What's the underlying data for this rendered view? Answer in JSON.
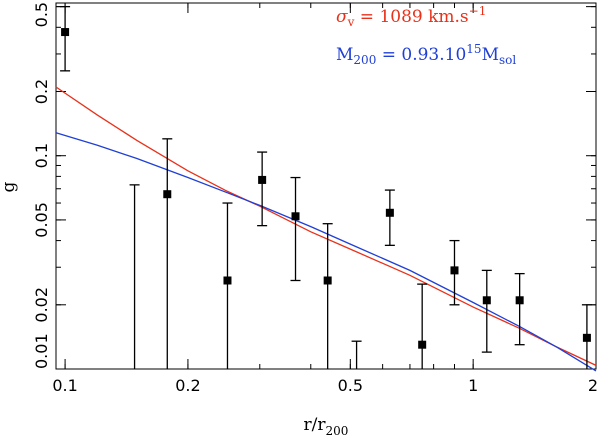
{
  "chart_data": {
    "type": "scatter",
    "xscale": "log",
    "yscale": "log",
    "xlim": [
      0.095,
      2.0
    ],
    "ylim": [
      0.01,
      0.52
    ],
    "xlabel": {
      "base": "r/r",
      "sub": "200"
    },
    "ylabel": "g",
    "x_ticks": [
      {
        "value": 0.1,
        "label": "0.1"
      },
      {
        "value": 0.2,
        "label": "0.2"
      },
      {
        "value": 0.5,
        "label": "0.5"
      },
      {
        "value": 1,
        "label": "1"
      },
      {
        "value": 2,
        "label": "2"
      }
    ],
    "y_ticks": [
      {
        "value": 0.01,
        "label": "0.01"
      },
      {
        "value": 0.02,
        "label": "0.02"
      },
      {
        "value": 0.05,
        "label": "0.05"
      },
      {
        "value": 0.1,
        "label": "0.1"
      },
      {
        "value": 0.2,
        "label": "0.2"
      },
      {
        "value": 0.5,
        "label": "0.5"
      }
    ],
    "points": [
      {
        "x": 0.1,
        "y": 0.38,
        "low": 0.25,
        "high": 0.5
      },
      {
        "x": 0.148,
        "y": null,
        "low": 0.01,
        "high": 0.073
      },
      {
        "x": 0.178,
        "y": 0.066,
        "low": 0.01,
        "high": 0.12
      },
      {
        "x": 0.25,
        "y": 0.026,
        "low": 0.01,
        "high": 0.06
      },
      {
        "x": 0.304,
        "y": 0.077,
        "low": 0.047,
        "high": 0.104
      },
      {
        "x": 0.367,
        "y": 0.052,
        "low": 0.026,
        "high": 0.079
      },
      {
        "x": 0.44,
        "y": 0.026,
        "low": 0.01,
        "high": 0.048
      },
      {
        "x": 0.518,
        "y": null,
        "low": 0.01,
        "high": 0.0135
      },
      {
        "x": 0.625,
        "y": 0.054,
        "low": 0.038,
        "high": 0.069
      },
      {
        "x": 0.75,
        "y": 0.013,
        "low": 0.01,
        "high": 0.025
      },
      {
        "x": 0.9,
        "y": 0.029,
        "low": 0.02,
        "high": 0.04
      },
      {
        "x": 1.08,
        "y": 0.021,
        "low": 0.012,
        "high": 0.029
      },
      {
        "x": 1.3,
        "y": 0.021,
        "low": 0.013,
        "high": 0.028
      },
      {
        "x": 1.9,
        "y": 0.014,
        "low": 0.01,
        "high": 0.02
      }
    ],
    "series": [
      {
        "name": "sigma_v",
        "color": "#e8311a",
        "legend": {
          "symbol": "σ",
          "sub": "v",
          "text": " = 1089 km.s",
          "sup": "−1"
        },
        "x": [
          0.095,
          0.12,
          0.15,
          0.2,
          0.25,
          0.3,
          0.4,
          0.5,
          0.7,
          1.0,
          1.3,
          1.6,
          2.0
        ],
        "y": [
          0.21,
          0.155,
          0.118,
          0.085,
          0.068,
          0.058,
          0.044,
          0.0365,
          0.0275,
          0.0195,
          0.0155,
          0.0127,
          0.0104
        ]
      },
      {
        "name": "M_200",
        "color": "#1f3fd6",
        "legend": {
          "symbol": "M",
          "sub": "200",
          "text": " = 0.93.10",
          "sup": "15",
          "tail": "M",
          "tail_sub": "sol"
        },
        "x": [
          0.095,
          0.12,
          0.15,
          0.2,
          0.25,
          0.3,
          0.4,
          0.5,
          0.7,
          1.0,
          1.3,
          1.6,
          2.0
        ],
        "y": [
          0.128,
          0.112,
          0.097,
          0.079,
          0.067,
          0.0585,
          0.0465,
          0.0385,
          0.029,
          0.0205,
          0.0158,
          0.0127,
          0.0098
        ]
      }
    ]
  }
}
